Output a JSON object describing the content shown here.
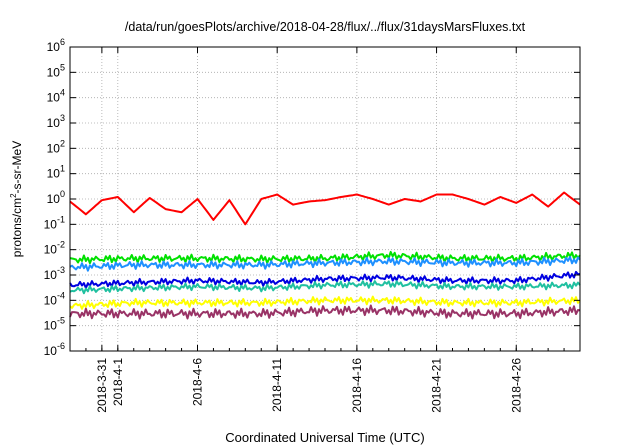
{
  "chart_data": {
    "type": "line",
    "title": "/data/run/goesPlots/archive/2018-04-28/flux/../flux/31daysMarsFluxes.txt",
    "xlabel": "Coordinated Universal Time (UTC)",
    "ylabel": "protons/cm2-s-sr-MeV",
    "yscale": "log",
    "ylim": [
      1e-06,
      1000000.0
    ],
    "y_ticks": [
      {
        "value": -6,
        "base": "10",
        "exp": "-6"
      },
      {
        "value": -5,
        "base": "10",
        "exp": "-5"
      },
      {
        "value": -4,
        "base": "10",
        "exp": "-4"
      },
      {
        "value": -3,
        "base": "10",
        "exp": "-3"
      },
      {
        "value": -2,
        "base": "10",
        "exp": "-2"
      },
      {
        "value": -1,
        "base": "10",
        "exp": "-1"
      },
      {
        "value": 0,
        "base": "10",
        "exp": "0"
      },
      {
        "value": 1,
        "base": "10",
        "exp": "1"
      },
      {
        "value": 2,
        "base": "10",
        "exp": "2"
      },
      {
        "value": 3,
        "base": "10",
        "exp": "3"
      },
      {
        "value": 4,
        "base": "10",
        "exp": "4"
      },
      {
        "value": 5,
        "base": "10",
        "exp": "5"
      },
      {
        "value": 6,
        "base": "10",
        "exp": "6"
      }
    ],
    "xlim": [
      "2018-03-29",
      "2018-04-30"
    ],
    "x_ticks": [
      {
        "date": "2018-03-31",
        "label": "2018-3-31"
      },
      {
        "date": "2018-04-01",
        "label": "2018-4-1"
      },
      {
        "date": "2018-04-06",
        "label": "2018-4-6"
      },
      {
        "date": "2018-04-11",
        "label": "2018-4-11"
      },
      {
        "date": "2018-04-16",
        "label": "2018-4-16"
      },
      {
        "date": "2018-04-21",
        "label": "2018-4-21"
      },
      {
        "date": "2018-04-26",
        "label": "2018-4-26"
      }
    ],
    "grid": true,
    "legend": "none",
    "series": [
      {
        "color": "#ff0000",
        "x": [
          "2018-03-29",
          "2018-03-30",
          "2018-03-31",
          "2018-04-01",
          "2018-04-02",
          "2018-04-03",
          "2018-04-04",
          "2018-04-05",
          "2018-04-06",
          "2018-04-07",
          "2018-04-08",
          "2018-04-09",
          "2018-04-10",
          "2018-04-11",
          "2018-04-12",
          "2018-04-13",
          "2018-04-14",
          "2018-04-15",
          "2018-04-16",
          "2018-04-17",
          "2018-04-18",
          "2018-04-19",
          "2018-04-20",
          "2018-04-21",
          "2018-04-22",
          "2018-04-23",
          "2018-04-24",
          "2018-04-25",
          "2018-04-26",
          "2018-04-27",
          "2018-04-28",
          "2018-04-29",
          "2018-04-30"
        ],
        "values": [
          0.8,
          0.25,
          0.9,
          1.2,
          0.3,
          1.1,
          0.4,
          0.3,
          1.0,
          0.15,
          0.9,
          0.1,
          1.0,
          1.5,
          0.6,
          0.8,
          0.9,
          1.2,
          1.5,
          1.0,
          0.6,
          1.0,
          0.8,
          1.5,
          1.5,
          1.0,
          0.6,
          1.2,
          0.7,
          1.5,
          0.5,
          1.8,
          0.6
        ]
      },
      {
        "color": "#00e000",
        "x": [
          "2018-03-29",
          "2018-04-02",
          "2018-04-06",
          "2018-04-10",
          "2018-04-14",
          "2018-04-18",
          "2018-04-22",
          "2018-04-26",
          "2018-04-30"
        ],
        "values": [
          0.004,
          0.0045,
          0.0045,
          0.0042,
          0.0045,
          0.006,
          0.0045,
          0.0045,
          0.006
        ]
      },
      {
        "color": "#1e90ff",
        "x": [
          "2018-03-29",
          "2018-04-02",
          "2018-04-06",
          "2018-04-10",
          "2018-04-14",
          "2018-04-18",
          "2018-04-22",
          "2018-04-26",
          "2018-04-30"
        ],
        "values": [
          0.002,
          0.0025,
          0.0025,
          0.0025,
          0.003,
          0.0035,
          0.003,
          0.003,
          0.004
        ]
      },
      {
        "color": "#0000e0",
        "x": [
          "2018-03-29",
          "2018-04-02",
          "2018-04-06",
          "2018-04-10",
          "2018-04-14",
          "2018-04-18",
          "2018-04-22",
          "2018-04-26",
          "2018-04-30"
        ],
        "values": [
          0.0004,
          0.0005,
          0.0006,
          0.0005,
          0.0007,
          0.0008,
          0.0006,
          0.0006,
          0.0011
        ]
      },
      {
        "color": "#20c0a0",
        "x": [
          "2018-03-29",
          "2018-04-02",
          "2018-04-06",
          "2018-04-10",
          "2018-04-14",
          "2018-04-18",
          "2018-04-22",
          "2018-04-26",
          "2018-04-30"
        ],
        "values": [
          0.00025,
          0.0003,
          0.00035,
          0.0003,
          0.0004,
          0.00045,
          0.00035,
          0.00035,
          0.0004
        ]
      },
      {
        "color": "#ffff00",
        "x": [
          "2018-03-29",
          "2018-04-02",
          "2018-04-06",
          "2018-04-10",
          "2018-04-14",
          "2018-04-18",
          "2018-04-22",
          "2018-04-26",
          "2018-04-30"
        ],
        "values": [
          6e-05,
          8e-05,
          8e-05,
          8e-05,
          0.0001,
          0.0001,
          8e-05,
          8e-05,
          0.0001
        ]
      },
      {
        "color": "#993366",
        "x": [
          "2018-03-29",
          "2018-04-02",
          "2018-04-06",
          "2018-04-10",
          "2018-04-14",
          "2018-04-18",
          "2018-04-22",
          "2018-04-26",
          "2018-04-30"
        ],
        "values": [
          3e-05,
          3e-05,
          3e-05,
          3e-05,
          4e-05,
          4e-05,
          3e-05,
          3e-05,
          4e-05
        ]
      }
    ]
  }
}
